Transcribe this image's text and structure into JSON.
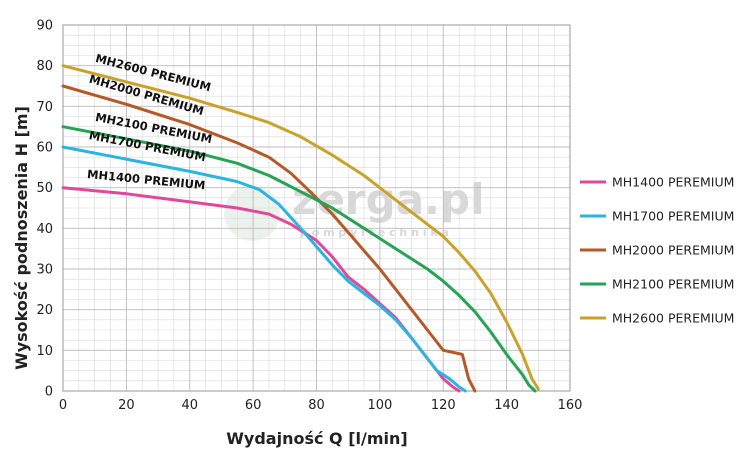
{
  "chart_data": {
    "type": "line",
    "xlabel": "Wydajność Q [l/min]",
    "ylabel": "Wysokość podnoszenia H [m]",
    "xlim": [
      0,
      160
    ],
    "ylim": [
      0,
      90
    ],
    "x_ticks": [
      0,
      20,
      40,
      60,
      80,
      100,
      120,
      140,
      160
    ],
    "y_ticks": [
      0,
      10,
      20,
      30,
      40,
      50,
      60,
      70,
      80,
      90
    ],
    "grid": "major and minor",
    "legend_position": "right",
    "series": [
      {
        "name": "MH1400 PEREMIUM",
        "curve_label": "MH1400 PREMIUM",
        "color": "#e0499b",
        "points": [
          [
            0,
            50
          ],
          [
            20,
            48.5
          ],
          [
            40,
            46.5
          ],
          [
            55,
            45
          ],
          [
            65,
            43.5
          ],
          [
            72,
            41
          ],
          [
            80,
            37
          ],
          [
            85,
            33
          ],
          [
            90,
            28
          ],
          [
            95,
            25
          ],
          [
            100,
            21.5
          ],
          [
            105,
            18
          ],
          [
            110,
            13
          ],
          [
            115,
            8
          ],
          [
            120,
            3
          ],
          [
            123,
            1
          ],
          [
            125,
            0
          ]
        ]
      },
      {
        "name": "MH1700 PEREMIUM",
        "curve_label": "MH1700 PREMIUM",
        "color": "#2bb3e2",
        "points": [
          [
            0,
            60
          ],
          [
            20,
            57
          ],
          [
            40,
            54
          ],
          [
            55,
            51.5
          ],
          [
            62,
            49.5
          ],
          [
            68,
            46
          ],
          [
            75,
            40
          ],
          [
            80,
            35.5
          ],
          [
            85,
            31
          ],
          [
            90,
            27
          ],
          [
            95,
            24
          ],
          [
            100,
            21
          ],
          [
            105,
            17.5
          ],
          [
            110,
            13
          ],
          [
            115,
            8
          ],
          [
            118,
            5
          ],
          [
            122,
            3
          ],
          [
            125,
            1
          ],
          [
            127,
            0
          ]
        ]
      },
      {
        "name": "MH2000 PEREMIUM",
        "curve_label": "MH2000 PREMIUM",
        "color": "#b35a28",
        "points": [
          [
            0,
            75
          ],
          [
            20,
            70.5
          ],
          [
            40,
            65.5
          ],
          [
            55,
            61
          ],
          [
            65,
            57.5
          ],
          [
            72,
            53.5
          ],
          [
            78,
            49
          ],
          [
            85,
            43.5
          ],
          [
            90,
            39
          ],
          [
            95,
            34.5
          ],
          [
            100,
            30
          ],
          [
            105,
            25
          ],
          [
            110,
            20
          ],
          [
            115,
            15
          ],
          [
            120,
            10
          ],
          [
            126,
            9
          ],
          [
            128,
            3
          ],
          [
            130,
            0
          ]
        ]
      },
      {
        "name": "MH2100 PEREMIUM",
        "curve_label": "MH2100 PREMIUM",
        "color": "#26a354",
        "points": [
          [
            0,
            65
          ],
          [
            20,
            62
          ],
          [
            40,
            59
          ],
          [
            55,
            56
          ],
          [
            65,
            53
          ],
          [
            75,
            49
          ],
          [
            85,
            45
          ],
          [
            95,
            40
          ],
          [
            105,
            35
          ],
          [
            115,
            30
          ],
          [
            120,
            27
          ],
          [
            125,
            23.5
          ],
          [
            130,
            19.5
          ],
          [
            135,
            14.5
          ],
          [
            140,
            9
          ],
          [
            145,
            4
          ],
          [
            147,
            1.5
          ],
          [
            149,
            0
          ]
        ]
      },
      {
        "name": "MH2600 PEREMIUM",
        "curve_label": "MH2600 PREMIUM",
        "color": "#c9a22c",
        "points": [
          [
            0,
            80
          ],
          [
            20,
            76
          ],
          [
            40,
            72
          ],
          [
            55,
            68.5
          ],
          [
            65,
            66
          ],
          [
            75,
            62.5
          ],
          [
            85,
            58
          ],
          [
            95,
            53
          ],
          [
            105,
            47
          ],
          [
            115,
            41
          ],
          [
            120,
            38
          ],
          [
            125,
            34
          ],
          [
            130,
            29.5
          ],
          [
            135,
            24
          ],
          [
            140,
            17
          ],
          [
            145,
            9
          ],
          [
            148,
            3
          ],
          [
            150,
            0.5
          ]
        ]
      }
    ],
    "watermark": {
      "main": "zerga.pl",
      "sub": "p o m p y   i   t e c h n i k a"
    }
  }
}
